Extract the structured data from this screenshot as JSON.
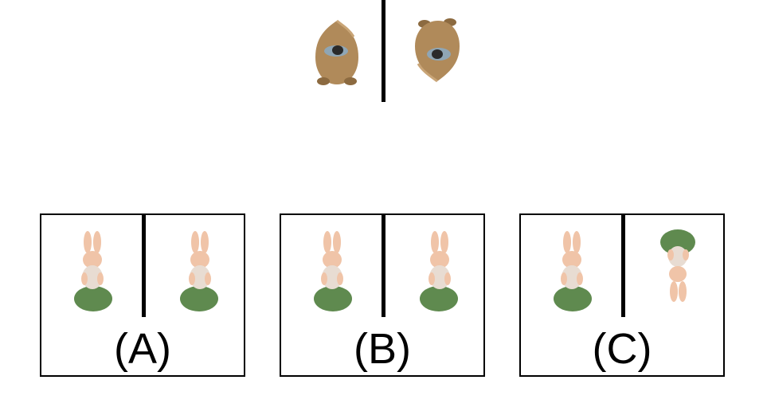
{
  "reference": {
    "left_icon": "bear-plush-topdown-icon",
    "right_icon": "bear-plush-topdown-rotated-icon"
  },
  "options": [
    {
      "label": "(A)",
      "left_icon": "bunny-on-green-base-icon",
      "right_icon": "bunny-on-green-base-icon"
    },
    {
      "label": "(B)",
      "left_icon": "bunny-on-green-base-icon",
      "right_icon": "bunny-on-green-base-icon"
    },
    {
      "label": "(C)",
      "left_icon": "bunny-on-green-base-icon",
      "right_icon": "bunny-on-green-base-upside-down-icon"
    }
  ],
  "colors": {
    "bear": "#b08a5a",
    "bear_dark": "#8c6a40",
    "bunny": "#f0c4a8",
    "base": "#5f8a4f",
    "base_dark": "#4d7340",
    "frame": "#000000"
  }
}
